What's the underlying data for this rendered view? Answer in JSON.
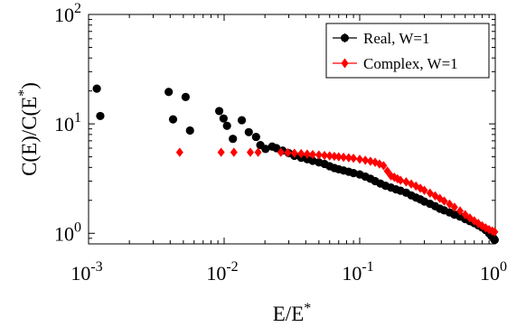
{
  "chart_data": {
    "type": "scatter",
    "xscale": "log",
    "yscale": "log",
    "xlim": [
      0.001,
      1
    ],
    "ylim": [
      0.8,
      100
    ],
    "xlabel": "E/E",
    "xlabel_sup": "*",
    "ylabel": "C(E)/C(E",
    "ylabel_sup": "*",
    "ylabel_tail": ")",
    "grid": false,
    "legend_position": "top-right",
    "xticks": [
      {
        "value": 0.001,
        "base": "10",
        "exp": "-3"
      },
      {
        "value": 0.01,
        "base": "10",
        "exp": "-2"
      },
      {
        "value": 0.1,
        "base": "10",
        "exp": "-1"
      },
      {
        "value": 1,
        "base": "10",
        "exp": "0"
      }
    ],
    "yticks": [
      {
        "value": 1,
        "base": "10",
        "exp": "0"
      },
      {
        "value": 10,
        "base": "10",
        "exp": "1"
      },
      {
        "value": 100,
        "base": "10",
        "exp": "2"
      }
    ],
    "series": [
      {
        "name": "Real, W=1",
        "color": "#000000",
        "marker": "circle",
        "points": [
          [
            0.00115,
            21
          ],
          [
            0.00122,
            11.8
          ],
          [
            0.0039,
            19.6
          ],
          [
            0.0042,
            11
          ],
          [
            0.0052,
            17.6
          ],
          [
            0.0056,
            8.7
          ],
          [
            0.0092,
            13.1
          ],
          [
            0.0099,
            11.2
          ],
          [
            0.0105,
            9.6
          ],
          [
            0.0116,
            7.3
          ],
          [
            0.0135,
            10.8
          ],
          [
            0.0152,
            8.4
          ],
          [
            0.0172,
            7.6
          ],
          [
            0.0185,
            6.4
          ],
          [
            0.0202,
            5.9
          ],
          [
            0.0226,
            6.2
          ],
          [
            0.0243,
            6.0
          ],
          [
            0.027,
            5.7
          ],
          [
            0.03,
            5.4
          ],
          [
            0.033,
            5.1
          ],
          [
            0.037,
            4.9
          ],
          [
            0.041,
            4.75
          ],
          [
            0.045,
            4.6
          ],
          [
            0.05,
            4.45
          ],
          [
            0.055,
            4.3
          ],
          [
            0.06,
            4.1
          ],
          [
            0.065,
            3.95
          ],
          [
            0.07,
            3.85
          ],
          [
            0.076,
            3.75
          ],
          [
            0.083,
            3.65
          ],
          [
            0.09,
            3.55
          ],
          [
            0.1,
            3.45
          ],
          [
            0.11,
            3.3
          ],
          [
            0.12,
            3.15
          ],
          [
            0.13,
            3.0
          ],
          [
            0.142,
            2.85
          ],
          [
            0.155,
            2.72
          ],
          [
            0.17,
            2.62
          ],
          [
            0.185,
            2.52
          ],
          [
            0.2,
            2.45
          ],
          [
            0.22,
            2.35
          ],
          [
            0.24,
            2.22
          ],
          [
            0.26,
            2.12
          ],
          [
            0.28,
            2.04
          ],
          [
            0.3,
            1.95
          ],
          [
            0.33,
            1.86
          ],
          [
            0.36,
            1.77
          ],
          [
            0.39,
            1.68
          ],
          [
            0.42,
            1.62
          ],
          [
            0.46,
            1.55
          ],
          [
            0.5,
            1.48
          ],
          [
            0.55,
            1.42
          ],
          [
            0.6,
            1.35
          ],
          [
            0.65,
            1.29
          ],
          [
            0.7,
            1.24
          ],
          [
            0.75,
            1.18
          ],
          [
            0.8,
            1.13
          ],
          [
            0.85,
            1.07
          ],
          [
            0.9,
            1.0
          ],
          [
            0.94,
            0.94
          ],
          [
            0.97,
            0.9
          ],
          [
            0.99,
            0.87
          ]
        ]
      },
      {
        "name": "Complex, W=1",
        "color": "#ff0000",
        "marker": "diamond",
        "points": [
          [
            0.0047,
            5.5
          ],
          [
            0.0095,
            5.5
          ],
          [
            0.0118,
            5.5
          ],
          [
            0.0156,
            5.5
          ],
          [
            0.0178,
            5.5
          ],
          [
            0.0262,
            5.5
          ],
          [
            0.0295,
            5.45
          ],
          [
            0.033,
            5.4
          ],
          [
            0.037,
            5.35
          ],
          [
            0.041,
            5.3
          ],
          [
            0.045,
            5.25
          ],
          [
            0.05,
            5.2
          ],
          [
            0.055,
            5.15
          ],
          [
            0.06,
            5.1
          ],
          [
            0.065,
            5.05
          ],
          [
            0.07,
            5.0
          ],
          [
            0.076,
            4.95
          ],
          [
            0.083,
            4.9
          ],
          [
            0.09,
            4.85
          ],
          [
            0.1,
            4.75
          ],
          [
            0.11,
            4.65
          ],
          [
            0.12,
            4.55
          ],
          [
            0.13,
            4.45
          ],
          [
            0.14,
            4.3
          ],
          [
            0.15,
            4.15
          ],
          [
            0.16,
            3.7
          ],
          [
            0.17,
            3.35
          ],
          [
            0.18,
            3.25
          ],
          [
            0.19,
            3.15
          ],
          [
            0.2,
            3.05
          ],
          [
            0.22,
            2.95
          ],
          [
            0.24,
            2.82
          ],
          [
            0.26,
            2.7
          ],
          [
            0.28,
            2.58
          ],
          [
            0.3,
            2.47
          ],
          [
            0.33,
            2.33
          ],
          [
            0.36,
            2.2
          ],
          [
            0.39,
            2.08
          ],
          [
            0.42,
            1.97
          ],
          [
            0.46,
            1.85
          ],
          [
            0.5,
            1.73
          ],
          [
            0.55,
            1.6
          ],
          [
            0.6,
            1.48
          ],
          [
            0.65,
            1.38
          ],
          [
            0.7,
            1.3
          ],
          [
            0.75,
            1.23
          ],
          [
            0.8,
            1.17
          ],
          [
            0.85,
            1.12
          ],
          [
            0.9,
            1.08
          ],
          [
            0.95,
            1.05
          ],
          [
            0.99,
            1.03
          ]
        ]
      }
    ]
  }
}
